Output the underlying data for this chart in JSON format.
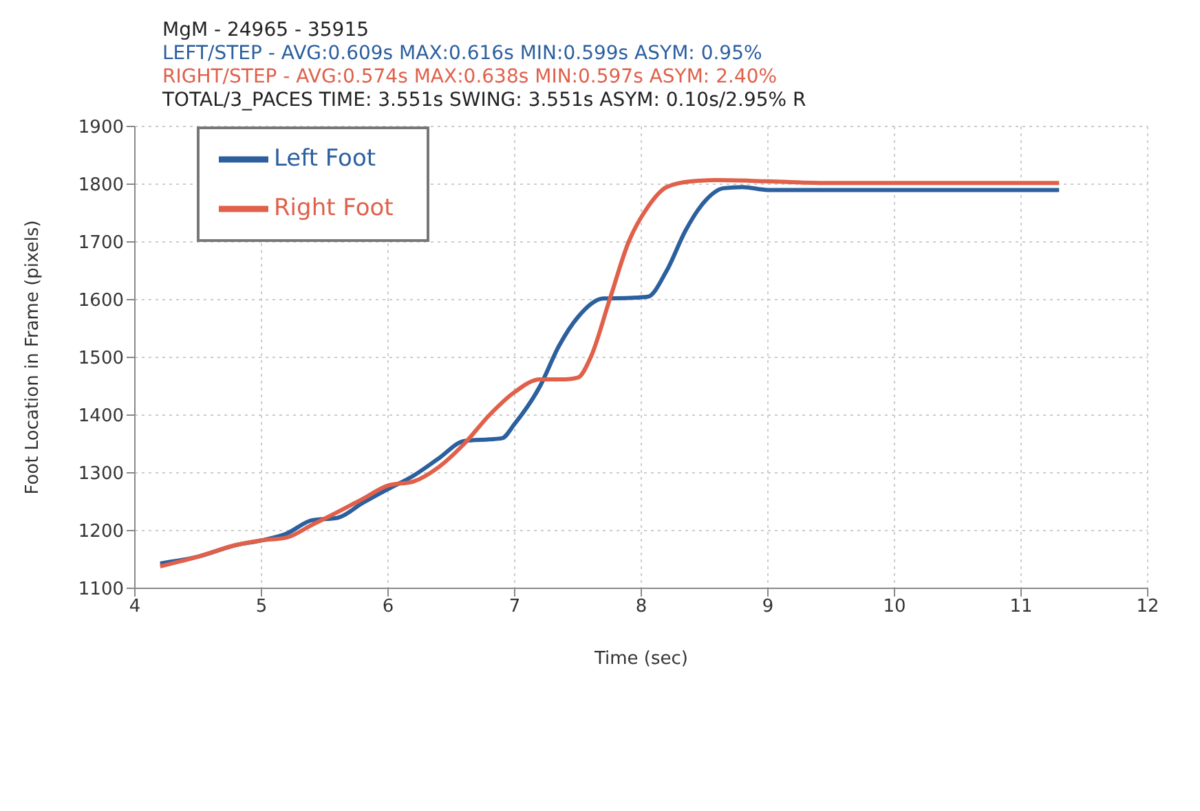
{
  "chart_data": {
    "type": "line",
    "title": "MgM -  24965 - 35915",
    "annotations": [
      "LEFT/STEP  - AVG:0.609s MAX:0.616s MIN:0.599s ASYM: 0.95%",
      "RIGHT/STEP - AVG:0.574s MAX:0.638s MIN:0.597s ASYM: 2.40%",
      "TOTAL/3_PACES TIME: 3.551s SWING: 3.551s  ASYM: 0.10s/2.95% R"
    ],
    "xlabel": "Time (sec)",
    "ylabel": "Foot Location in Frame (pixels)",
    "xlim": [
      4,
      12
    ],
    "xticks": [
      4,
      5,
      6,
      7,
      8,
      9,
      10,
      11,
      12
    ],
    "ylim": [
      1100,
      1900
    ],
    "yticks": [
      1100,
      1200,
      1300,
      1400,
      1500,
      1600,
      1700,
      1800,
      1900
    ],
    "grid": true,
    "legend": "top left",
    "marker": "none",
    "line_style": "solid",
    "series": [
      {
        "name": "Left Foot",
        "color": "#2b5f9e",
        "x": [
          4.2,
          4.5,
          4.8,
          5.0,
          5.2,
          5.4,
          5.6,
          5.8,
          6.0,
          6.2,
          6.4,
          6.6,
          6.8,
          6.9,
          7.0,
          7.2,
          7.35,
          7.5,
          7.7,
          7.9,
          8.05,
          8.2,
          8.35,
          8.5,
          8.65,
          8.8,
          9.0,
          10.0,
          11.3
        ],
        "values": [
          1143,
          1155,
          1175,
          1183,
          1195,
          1218,
          1222,
          1248,
          1272,
          1295,
          1325,
          1355,
          1358,
          1360,
          1385,
          1450,
          1520,
          1570,
          1602,
          1603,
          1605,
          1650,
          1720,
          1770,
          1793,
          1795,
          1790,
          1790,
          1790
        ]
      },
      {
        "name": "Right Foot",
        "color": "#e0604a",
        "x": [
          4.2,
          4.5,
          4.8,
          5.0,
          5.2,
          5.4,
          5.6,
          5.8,
          6.0,
          6.2,
          6.4,
          6.6,
          6.8,
          7.0,
          7.2,
          7.4,
          7.5,
          7.6,
          7.75,
          7.9,
          8.05,
          8.2,
          8.4,
          8.6,
          9.0,
          9.5,
          11.3
        ],
        "values": [
          1138,
          1155,
          1175,
          1183,
          1188,
          1210,
          1232,
          1255,
          1278,
          1285,
          1310,
          1350,
          1400,
          1440,
          1462,
          1462,
          1465,
          1500,
          1600,
          1700,
          1760,
          1795,
          1805,
          1807,
          1805,
          1802,
          1802
        ]
      }
    ]
  }
}
